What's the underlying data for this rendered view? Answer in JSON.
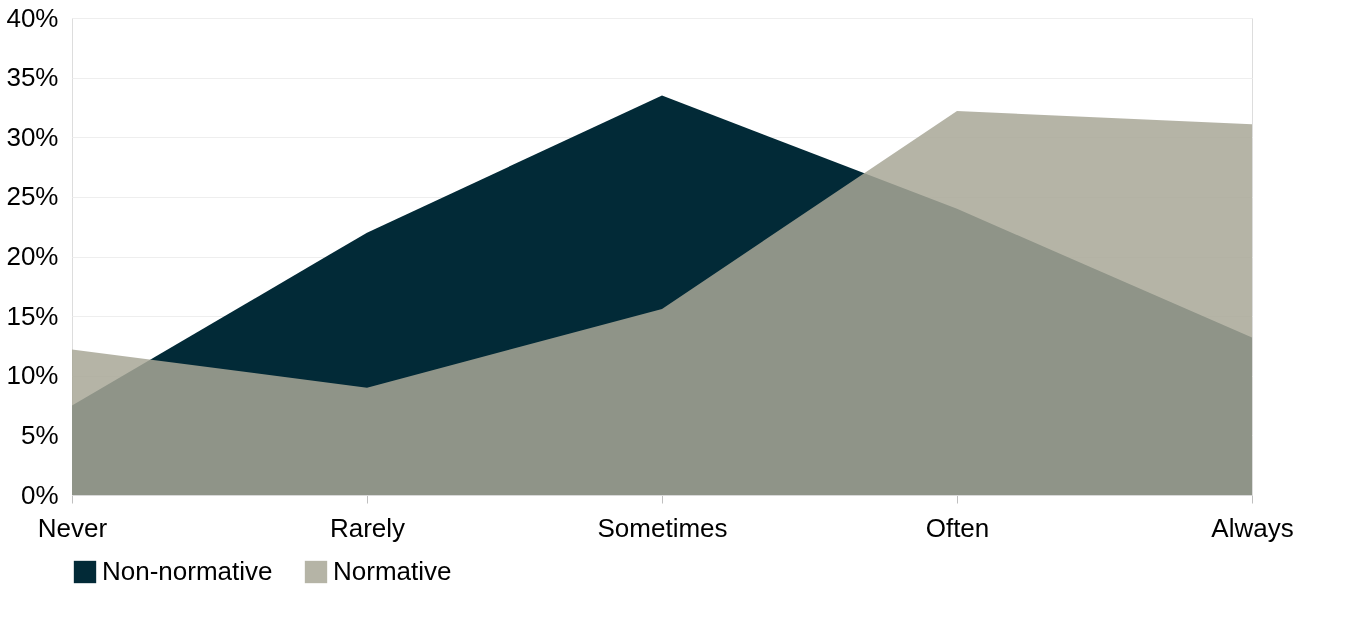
{
  "chart_data": {
    "type": "area",
    "categories": [
      "Never",
      "Rarely",
      "Sometimes",
      "Often",
      "Always"
    ],
    "series": [
      {
        "name": "Non-normative",
        "color": "#022a37",
        "values": [
          7.5,
          22.0,
          33.5,
          24.0,
          13.2
        ]
      },
      {
        "name": "Normative",
        "color": "#a8a797",
        "values": [
          12.2,
          9.0,
          15.6,
          32.2,
          31.1
        ]
      }
    ],
    "ylim": [
      0,
      40
    ],
    "yticks": [
      {
        "value": 0,
        "label": "0%"
      },
      {
        "value": 5,
        "label": "5%"
      },
      {
        "value": 10,
        "label": "10%"
      },
      {
        "value": 15,
        "label": "15%"
      },
      {
        "value": 20,
        "label": "20%"
      },
      {
        "value": 25,
        "label": "25%"
      },
      {
        "value": 30,
        "label": "30%"
      },
      {
        "value": 35,
        "label": "35%"
      },
      {
        "value": 40,
        "label": "40%"
      }
    ],
    "grid": "y",
    "legend": "bottom"
  }
}
